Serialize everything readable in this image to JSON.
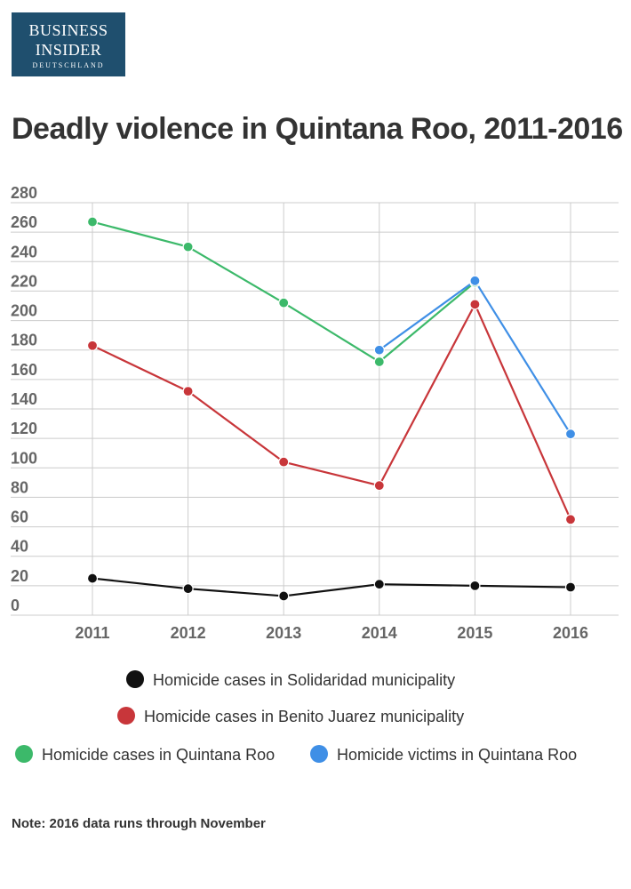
{
  "logo": {
    "line1": "BUSINESS",
    "line2": "INSIDER",
    "line3": "DEUTSCHLAND"
  },
  "title": "Deadly violence in Quintana Roo, 2011-2016",
  "note": "Note: 2016 data runs through November",
  "chart_data": {
    "type": "line",
    "title": "Deadly violence in Quintana Roo, 2011-2016",
    "xlabel": "",
    "ylabel": "",
    "x": [
      "2011",
      "2012",
      "2013",
      "2014",
      "2015",
      "2016"
    ],
    "y_ticks": [
      "0",
      "20",
      "40",
      "60",
      "80",
      "100",
      "120",
      "140",
      "160",
      "180",
      "200",
      "220",
      "240",
      "260",
      "280"
    ],
    "ylim": [
      0,
      280
    ],
    "grid": true,
    "legend_position": "bottom",
    "series": [
      {
        "name": "Homicide cases in Solidaridad municipality",
        "color": "#111111",
        "values": [
          25,
          18,
          13,
          21,
          20,
          19
        ]
      },
      {
        "name": "Homicide cases in Benito Juarez municipality",
        "color": "#c8363a",
        "values": [
          183,
          152,
          104,
          88,
          211,
          65
        ]
      },
      {
        "name": "Homicide cases in Quintana Roo",
        "color": "#3cb96a",
        "values": [
          267,
          250,
          212,
          172,
          226,
          null
        ]
      },
      {
        "name": "Homicide victims in Quintana Roo",
        "color": "#3f8fe6",
        "values": [
          null,
          null,
          null,
          180,
          227,
          123
        ]
      }
    ]
  }
}
